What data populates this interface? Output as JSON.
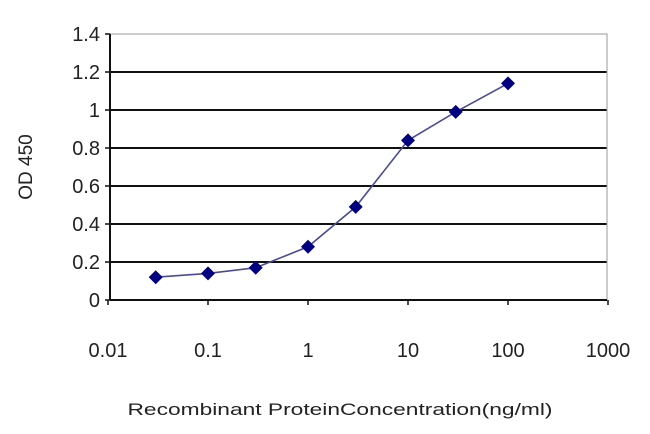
{
  "chart_data": {
    "type": "line",
    "title": "",
    "xlabel": "Recombinant ProteinConcentration(ng/ml)",
    "ylabel": "OD 450",
    "xscale": "log",
    "xlim": [
      0.01,
      1000
    ],
    "ylim": [
      0,
      1.4
    ],
    "xticks": [
      "0.01",
      "0.1",
      "1",
      "10",
      "100",
      "1000"
    ],
    "yticks": [
      "0",
      "0.2",
      "0.4",
      "0.6",
      "0.8",
      "1",
      "1.2",
      "1.4"
    ],
    "grid": "horizontal",
    "series": [
      {
        "x": [
          0.03,
          0.1,
          0.3,
          1,
          3,
          10,
          30,
          100
        ],
        "y": [
          0.12,
          0.14,
          0.17,
          0.28,
          0.49,
          0.84,
          0.99,
          1.14
        ],
        "color": "#000080",
        "marker": "diamond"
      }
    ]
  }
}
